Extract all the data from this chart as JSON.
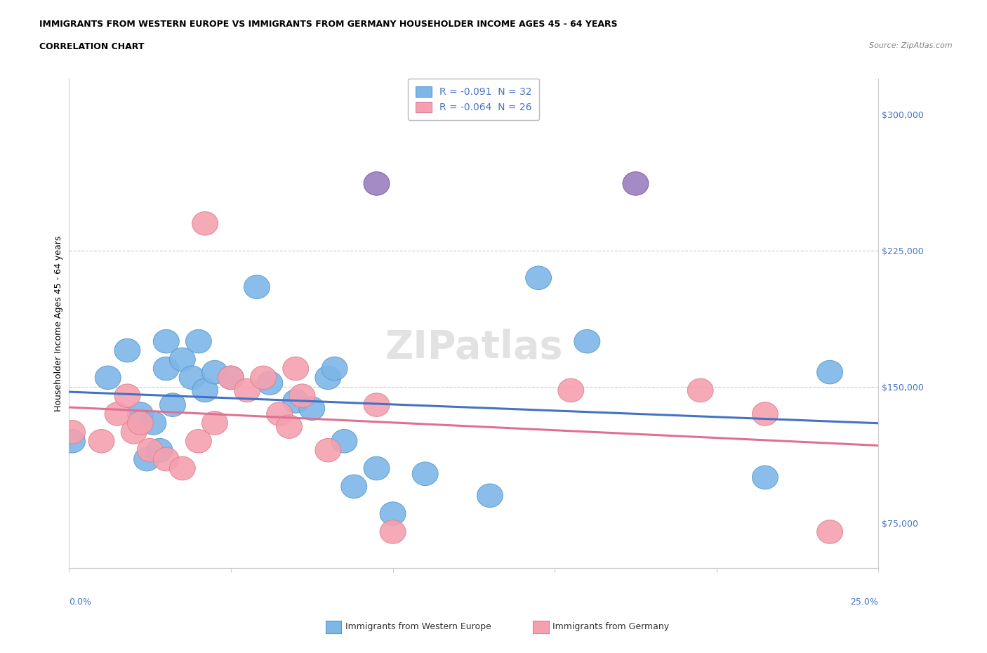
{
  "title_line1": "IMMIGRANTS FROM WESTERN EUROPE VS IMMIGRANTS FROM GERMANY HOUSEHOLDER INCOME AGES 45 - 64 YEARS",
  "title_line2": "CORRELATION CHART",
  "source": "Source: ZipAtlas.com",
  "ylabel": "Householder Income Ages 45 - 64 years",
  "xlim": [
    0.0,
    0.25
  ],
  "ylim": [
    50000,
    320000
  ],
  "yticks": [
    75000,
    150000,
    225000,
    300000
  ],
  "ytick_labels": [
    "$75,000",
    "$150,000",
    "$225,000",
    "$300,000"
  ],
  "hlines": [
    150000,
    225000
  ],
  "watermark": "ZIPatlas",
  "legend_r1": "R = -0.091  N = 32",
  "legend_r2": "R = -0.064  N = 26",
  "color_blue": "#7EB6E8",
  "color_pink": "#F5A0B0",
  "color_purple": "#9B7FBF",
  "trend_blue": "#4472C4",
  "trend_pink": "#E07090",
  "blue_scatter_x": [
    0.001,
    0.012,
    0.018,
    0.022,
    0.024,
    0.026,
    0.028,
    0.03,
    0.03,
    0.032,
    0.035,
    0.038,
    0.04,
    0.042,
    0.045,
    0.05,
    0.058,
    0.062,
    0.07,
    0.075,
    0.08,
    0.082,
    0.085,
    0.088,
    0.095,
    0.1,
    0.11,
    0.13,
    0.145,
    0.16,
    0.215,
    0.235
  ],
  "blue_scatter_y": [
    120000,
    155000,
    170000,
    135000,
    110000,
    130000,
    115000,
    160000,
    175000,
    140000,
    165000,
    155000,
    175000,
    148000,
    158000,
    155000,
    205000,
    152000,
    142000,
    138000,
    155000,
    160000,
    120000,
    95000,
    105000,
    80000,
    102000,
    90000,
    210000,
    175000,
    100000,
    158000
  ],
  "pink_scatter_x": [
    0.001,
    0.01,
    0.015,
    0.018,
    0.02,
    0.022,
    0.025,
    0.03,
    0.035,
    0.04,
    0.042,
    0.045,
    0.05,
    0.055,
    0.06,
    0.065,
    0.068,
    0.07,
    0.072,
    0.08,
    0.095,
    0.1,
    0.155,
    0.195,
    0.215,
    0.235
  ],
  "pink_scatter_y": [
    125000,
    120000,
    135000,
    145000,
    125000,
    130000,
    115000,
    110000,
    105000,
    120000,
    240000,
    130000,
    155000,
    148000,
    155000,
    135000,
    128000,
    160000,
    145000,
    115000,
    140000,
    70000,
    148000,
    148000,
    135000,
    70000
  ],
  "purple_scatter_x": [
    0.095,
    0.175
  ],
  "purple_scatter_y": [
    262000,
    262000
  ],
  "xtick_positions": [
    0.0,
    0.05,
    0.1,
    0.15,
    0.2,
    0.25
  ],
  "legend_label_blue": "Immigrants from Western Europe",
  "legend_label_pink": "Immigrants from Germany"
}
